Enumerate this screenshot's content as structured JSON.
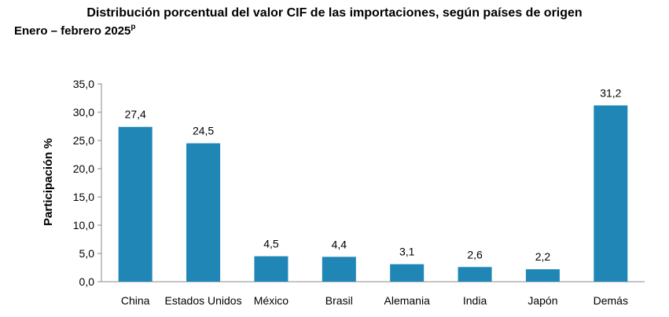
{
  "chart_data": {
    "type": "bar",
    "title": "Distribución porcentual del valor CIF de las importaciones, según países de origen",
    "subtitle": "Enero – febrero 2025",
    "subtitle_mark": "p",
    "ylabel": "Participación %",
    "xlabel": "",
    "ylim": [
      0,
      35
    ],
    "ytick_step": 5,
    "yticks": [
      "0,0",
      "5,0",
      "10,0",
      "15,0",
      "20,0",
      "25,0",
      "30,0",
      "35,0"
    ],
    "categories": [
      "China",
      "Estados Unidos",
      "México",
      "Brasil",
      "Alemania",
      "India",
      "Japón",
      "Demás"
    ],
    "values": [
      27.4,
      24.5,
      4.5,
      4.4,
      3.1,
      2.6,
      2.2,
      31.2
    ],
    "data_labels": [
      "27,4",
      "24,5",
      "4,5",
      "4,4",
      "3,1",
      "2,6",
      "2,2",
      "31,2"
    ],
    "bar_color": "#1f86b6",
    "grid": false,
    "legend": "none"
  }
}
